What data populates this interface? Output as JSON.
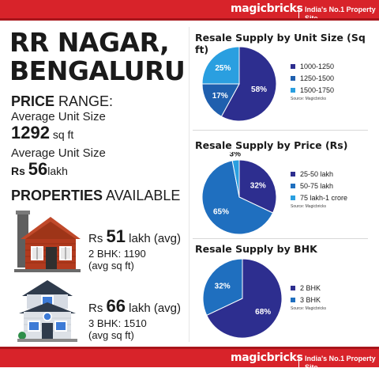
{
  "header": {
    "brand": "magicbricks",
    "tagline": "India's No.1 Property Site"
  },
  "footer": {
    "brand": "magicbricks",
    "tagline": "India's No.1 Property Site"
  },
  "left": {
    "title_line1": "RR NAGAR,",
    "title_line2": "BENGALURU",
    "price_bold": "PRICE",
    "price_rest": " RANGE:",
    "avg_size_label": "Average Unit Size",
    "avg_size_value": "1292",
    "avg_size_unit": " sq ft",
    "avg_price_label": "Average Unit Size",
    "avg_price_prefix": "Rs ",
    "avg_price_value": "56",
    "avg_price_unit": "lakh",
    "properties_bold": "PROPERTIES",
    "properties_rest": " AVAILABLE",
    "prop1": {
      "prefix": "Rs ",
      "value": "51",
      "suffix": " lakh (avg)",
      "line2": "2 BHK: 1190",
      "line3": "(avg sq ft)"
    },
    "prop2": {
      "prefix": "Rs ",
      "value": "66",
      "suffix": " lakh (avg)",
      "line2": "3 BHK: 1510",
      "line3": "(avg sq ft)"
    }
  },
  "charts": [
    {
      "title": "Resale Supply by Unit Size (Sq ft)",
      "slices": [
        {
          "label": "1000-1250",
          "value": 58,
          "text": "58%",
          "color": "#2d2e8f"
        },
        {
          "label": "1250-1500",
          "value": 17,
          "text": "17%",
          "color": "#1f5fae"
        },
        {
          "label": "1500-1750",
          "value": 25,
          "text": "25%",
          "color": "#2a9fe0"
        }
      ],
      "source": "Source: Magicbricks"
    },
    {
      "title": "Resale Supply by Price (Rs)",
      "slices": [
        {
          "label": "25-50 lakh",
          "value": 32,
          "text": "32%",
          "color": "#2d2e8f"
        },
        {
          "label": "50-75 lakh",
          "value": 65,
          "text": "65%",
          "color": "#1f6fbf"
        },
        {
          "label": "75 lakh-1 crore",
          "value": 3,
          "text": "3%",
          "color": "#2a9fe0"
        }
      ],
      "source": "Source: Magicbricks"
    },
    {
      "title": "Resale Supply by BHK",
      "slices": [
        {
          "label": "2 BHK",
          "value": 68,
          "text": "68%",
          "color": "#2d2e8f"
        },
        {
          "label": "3 BHK",
          "value": 32,
          "text": "32%",
          "color": "#1f6fbf"
        }
      ],
      "source": "Source: Magicbricks"
    }
  ]
}
